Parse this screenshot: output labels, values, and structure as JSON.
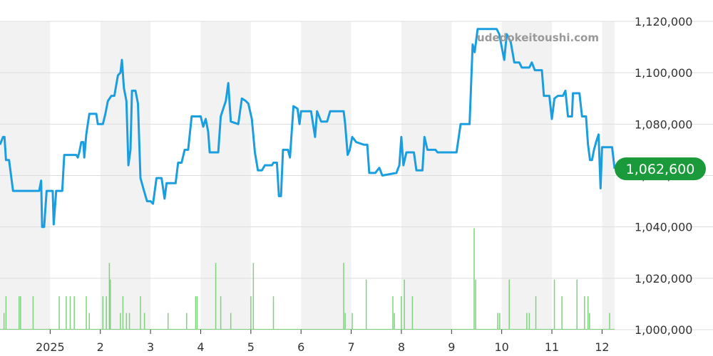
{
  "chart_data": {
    "type": "line",
    "watermark": "udedokeitoushi.com",
    "current_value_label": "1,062,600",
    "colors": {
      "line": "#1a9ee0",
      "volume": "#7fd17f",
      "badge": "#1a9a3a",
      "band": "#f2f2f2",
      "grid": "#dddddd"
    },
    "grid": true,
    "ylim": [
      1000000,
      1120000
    ],
    "y_ticks": [
      {
        "value": 1120000,
        "label": "1,120,000"
      },
      {
        "value": 1100000,
        "label": "1,100,000"
      },
      {
        "value": 1080000,
        "label": "1,080,000"
      },
      {
        "value": 1060000,
        "label": "1,060,000"
      },
      {
        "value": 1040000,
        "label": "1,040,000"
      },
      {
        "value": 1020000,
        "label": "1,020,000"
      },
      {
        "value": 1000000,
        "label": "1,000,000"
      }
    ],
    "x_range": [
      0,
      12.25
    ],
    "x_ticks": [
      {
        "value": 1,
        "label": "2025"
      },
      {
        "value": 2,
        "label": "2"
      },
      {
        "value": 3,
        "label": "3"
      },
      {
        "value": 4,
        "label": "4"
      },
      {
        "value": 5,
        "label": "5"
      },
      {
        "value": 6,
        "label": "6"
      },
      {
        "value": 7,
        "label": "7"
      },
      {
        "value": 8,
        "label": "8"
      },
      {
        "value": 9,
        "label": "9"
      },
      {
        "value": 10,
        "label": "10"
      },
      {
        "value": 11,
        "label": "11"
      },
      {
        "value": 12,
        "label": "12"
      }
    ],
    "shaded_bands": [
      [
        0,
        1
      ],
      [
        2,
        3
      ],
      [
        4,
        5
      ],
      [
        6,
        7
      ],
      [
        8,
        9
      ],
      [
        10,
        11
      ],
      [
        12,
        12.25
      ]
    ],
    "series": [
      {
        "type": "line",
        "points": [
          [
            0.0,
            1072000
          ],
          [
            0.06,
            1075000
          ],
          [
            0.09,
            1075000
          ],
          [
            0.12,
            1066000
          ],
          [
            0.18,
            1066000
          ],
          [
            0.26,
            1054000
          ],
          [
            0.5,
            1054000
          ],
          [
            0.78,
            1054000
          ],
          [
            0.82,
            1058000
          ],
          [
            0.84,
            1040000
          ],
          [
            0.88,
            1040000
          ],
          [
            0.93,
            1054000
          ],
          [
            1.05,
            1054000
          ],
          [
            1.07,
            1041000
          ],
          [
            1.12,
            1054000
          ],
          [
            1.2,
            1054000
          ],
          [
            1.24,
            1054000
          ],
          [
            1.28,
            1068000
          ],
          [
            1.4,
            1068000
          ],
          [
            1.52,
            1068000
          ],
          [
            1.55,
            1067000
          ],
          [
            1.58,
            1069000
          ],
          [
            1.62,
            1073000
          ],
          [
            1.66,
            1073000
          ],
          [
            1.68,
            1067000
          ],
          [
            1.72,
            1076000
          ],
          [
            1.78,
            1084000
          ],
          [
            1.92,
            1084000
          ],
          [
            1.95,
            1080000
          ],
          [
            2.05,
            1080000
          ],
          [
            2.1,
            1084000
          ],
          [
            2.15,
            1089000
          ],
          [
            2.22,
            1091000
          ],
          [
            2.28,
            1091000
          ],
          [
            2.35,
            1099000
          ],
          [
            2.4,
            1100000
          ],
          [
            2.43,
            1105000
          ],
          [
            2.47,
            1094000
          ],
          [
            2.52,
            1089000
          ],
          [
            2.56,
            1064000
          ],
          [
            2.6,
            1070000
          ],
          [
            2.63,
            1093000
          ],
          [
            2.7,
            1093000
          ],
          [
            2.75,
            1088000
          ],
          [
            2.8,
            1059000
          ],
          [
            2.87,
            1054000
          ],
          [
            2.93,
            1050000
          ],
          [
            3.0,
            1050000
          ],
          [
            3.05,
            1049000
          ],
          [
            3.12,
            1059000
          ],
          [
            3.22,
            1059000
          ],
          [
            3.28,
            1051000
          ],
          [
            3.32,
            1057000
          ],
          [
            3.42,
            1057000
          ],
          [
            3.5,
            1057000
          ],
          [
            3.55,
            1065000
          ],
          [
            3.62,
            1065000
          ],
          [
            3.68,
            1070000
          ],
          [
            3.75,
            1070000
          ],
          [
            3.82,
            1083000
          ],
          [
            4.0,
            1083000
          ],
          [
            4.05,
            1079000
          ],
          [
            4.1,
            1082000
          ],
          [
            4.15,
            1077000
          ],
          [
            4.18,
            1069000
          ],
          [
            4.35,
            1069000
          ],
          [
            4.4,
            1083000
          ],
          [
            4.45,
            1086000
          ],
          [
            4.5,
            1089000
          ],
          [
            4.55,
            1096000
          ],
          [
            4.6,
            1081000
          ],
          [
            4.75,
            1080000
          ],
          [
            4.82,
            1090000
          ],
          [
            4.9,
            1089000
          ],
          [
            4.95,
            1088000
          ],
          [
            5.02,
            1082000
          ],
          [
            5.08,
            1069000
          ],
          [
            5.14,
            1062000
          ],
          [
            5.22,
            1062000
          ],
          [
            5.28,
            1064000
          ],
          [
            5.42,
            1064000
          ],
          [
            5.45,
            1065000
          ],
          [
            5.52,
            1065000
          ],
          [
            5.56,
            1052000
          ],
          [
            5.6,
            1052000
          ],
          [
            5.64,
            1070000
          ],
          [
            5.74,
            1070000
          ],
          [
            5.78,
            1067000
          ],
          [
            5.85,
            1087000
          ],
          [
            5.93,
            1086000
          ],
          [
            5.97,
            1080000
          ],
          [
            6.0,
            1085000
          ],
          [
            6.2,
            1085000
          ],
          [
            6.28,
            1075000
          ],
          [
            6.32,
            1085000
          ],
          [
            6.4,
            1081000
          ],
          [
            6.52,
            1081000
          ],
          [
            6.58,
            1085000
          ],
          [
            6.85,
            1085000
          ],
          [
            6.88,
            1080000
          ],
          [
            6.93,
            1068000
          ],
          [
            6.97,
            1070000
          ],
          [
            7.02,
            1075000
          ],
          [
            7.1,
            1073000
          ],
          [
            7.25,
            1072000
          ],
          [
            7.32,
            1072000
          ],
          [
            7.36,
            1061000
          ],
          [
            7.48,
            1061000
          ],
          [
            7.56,
            1063000
          ],
          [
            7.62,
            1060000
          ],
          [
            7.9,
            1061000
          ],
          [
            7.96,
            1064000
          ],
          [
            8.0,
            1075000
          ],
          [
            8.04,
            1064000
          ],
          [
            8.1,
            1069000
          ],
          [
            8.25,
            1069000
          ],
          [
            8.3,
            1062000
          ],
          [
            8.42,
            1062000
          ],
          [
            8.46,
            1075000
          ],
          [
            8.52,
            1070000
          ],
          [
            8.68,
            1070000
          ],
          [
            8.72,
            1069000
          ],
          [
            9.05,
            1069000
          ],
          [
            9.1,
            1069000
          ],
          [
            9.18,
            1080000
          ],
          [
            9.36,
            1080000
          ],
          [
            9.42,
            1111000
          ],
          [
            9.46,
            1108000
          ],
          [
            9.52,
            1117000
          ],
          [
            9.7,
            1117000
          ],
          [
            9.9,
            1117000
          ],
          [
            9.95,
            1115000
          ],
          [
            10.0,
            1110000
          ],
          [
            10.05,
            1105000
          ],
          [
            10.1,
            1115000
          ],
          [
            10.18,
            1112000
          ],
          [
            10.25,
            1104000
          ],
          [
            10.35,
            1104000
          ],
          [
            10.4,
            1102000
          ],
          [
            10.55,
            1102000
          ],
          [
            10.6,
            1104000
          ],
          [
            10.66,
            1101000
          ],
          [
            10.8,
            1101000
          ],
          [
            10.84,
            1091000
          ],
          [
            10.95,
            1091000
          ],
          [
            11.0,
            1082000
          ],
          [
            11.05,
            1090000
          ],
          [
            11.12,
            1091000
          ],
          [
            11.22,
            1091000
          ],
          [
            11.27,
            1093000
          ],
          [
            11.32,
            1083000
          ],
          [
            11.4,
            1083000
          ],
          [
            11.42,
            1092000
          ],
          [
            11.55,
            1092000
          ],
          [
            11.6,
            1083000
          ],
          [
            11.68,
            1083000
          ],
          [
            11.72,
            1072000
          ],
          [
            11.76,
            1066000
          ],
          [
            11.8,
            1066000
          ],
          [
            11.84,
            1070000
          ],
          [
            11.88,
            1073000
          ],
          [
            11.93,
            1076000
          ],
          [
            11.97,
            1055000
          ],
          [
            12.0,
            1071000
          ],
          [
            12.2,
            1071000
          ],
          [
            12.25,
            1062600
          ]
        ]
      },
      {
        "type": "bar",
        "name": "volume",
        "points": [
          [
            0.08,
            1006500
          ],
          [
            0.12,
            1013000
          ],
          [
            0.38,
            1013000
          ],
          [
            0.41,
            1013000
          ],
          [
            0.66,
            1013000
          ],
          [
            1.18,
            1013000
          ],
          [
            1.32,
            1013000
          ],
          [
            1.4,
            1013000
          ],
          [
            1.48,
            1013000
          ],
          [
            1.72,
            1013000
          ],
          [
            1.78,
            1006500
          ],
          [
            2.05,
            1013000
          ],
          [
            2.12,
            1013000
          ],
          [
            2.18,
            1026000
          ],
          [
            2.2,
            1019500
          ],
          [
            2.4,
            1006500
          ],
          [
            2.45,
            1013000
          ],
          [
            2.52,
            1006500
          ],
          [
            2.58,
            1006500
          ],
          [
            2.8,
            1013000
          ],
          [
            2.88,
            1006500
          ],
          [
            3.35,
            1006500
          ],
          [
            3.72,
            1006500
          ],
          [
            3.9,
            1013000
          ],
          [
            3.93,
            1013000
          ],
          [
            4.3,
            1026000
          ],
          [
            4.4,
            1013000
          ],
          [
            4.6,
            1006500
          ],
          [
            5.0,
            1013000
          ],
          [
            5.05,
            1026000
          ],
          [
            5.45,
            1013000
          ],
          [
            6.85,
            1026000
          ],
          [
            6.88,
            1006500
          ],
          [
            7.02,
            1006500
          ],
          [
            7.3,
            1019500
          ],
          [
            7.83,
            1013000
          ],
          [
            7.86,
            1006500
          ],
          [
            8.0,
            1013000
          ],
          [
            8.06,
            1019500
          ],
          [
            8.22,
            1013000
          ],
          [
            9.45,
            1039500
          ],
          [
            9.48,
            1019500
          ],
          [
            9.92,
            1006500
          ],
          [
            9.96,
            1006500
          ],
          [
            10.15,
            1019500
          ],
          [
            10.5,
            1006500
          ],
          [
            10.55,
            1006500
          ],
          [
            10.68,
            1013000
          ],
          [
            11.05,
            1019500
          ],
          [
            11.2,
            1013000
          ],
          [
            11.5,
            1019500
          ],
          [
            11.65,
            1013000
          ],
          [
            11.72,
            1013000
          ],
          [
            11.75,
            1006500
          ],
          [
            12.15,
            1006500
          ]
        ]
      }
    ]
  }
}
